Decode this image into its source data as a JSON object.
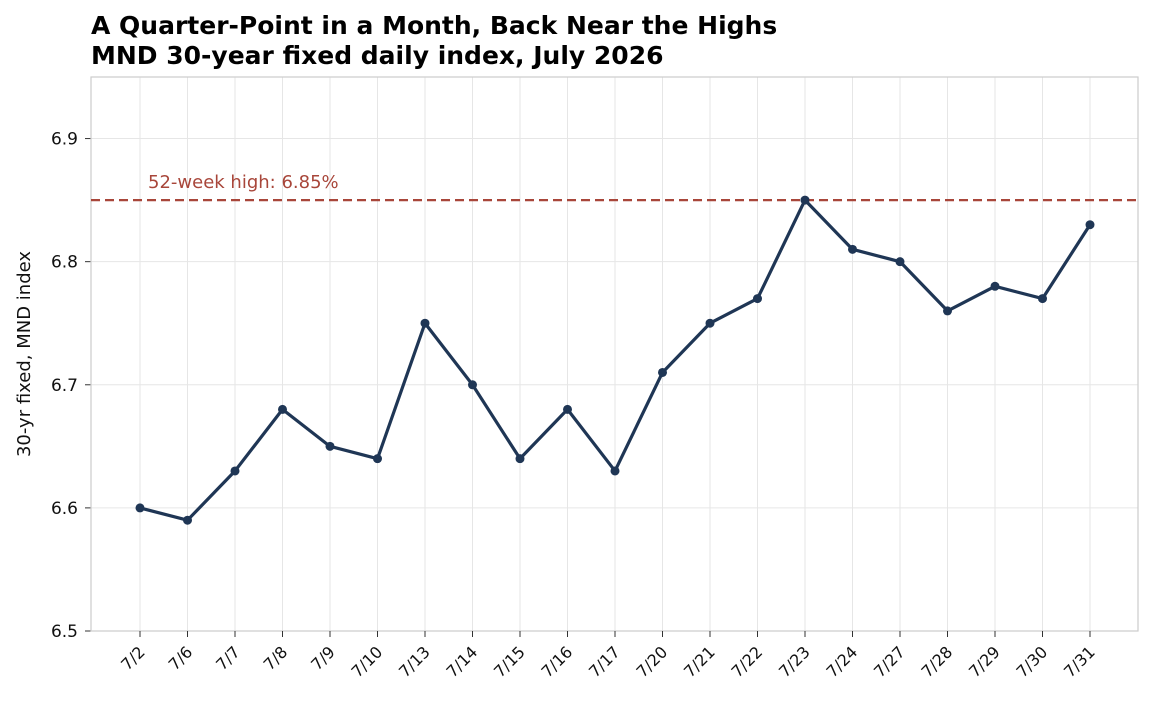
{
  "chart_data": {
    "type": "line",
    "title": "A Quarter-Point in a Month, Back Near the Highs",
    "subtitle": "MND 30-year fixed daily index, July 2026",
    "xlabel": "",
    "ylabel": "30-yr fixed, MND index",
    "ylim": [
      6.5,
      6.95
    ],
    "yticks": [
      "6.5",
      "6.6",
      "6.7",
      "6.8",
      "6.9"
    ],
    "categories": [
      "7/2",
      "7/6",
      "7/7",
      "7/8",
      "7/9",
      "7/10",
      "7/13",
      "7/14",
      "7/15",
      "7/16",
      "7/17",
      "7/20",
      "7/21",
      "7/22",
      "7/23",
      "7/24",
      "7/27",
      "7/28",
      "7/29",
      "7/30",
      "7/31"
    ],
    "series": [
      {
        "values": [
          6.6,
          6.59,
          6.63,
          6.68,
          6.65,
          6.64,
          6.75,
          6.7,
          6.64,
          6.68,
          6.63,
          6.71,
          6.75,
          6.77,
          6.85,
          6.81,
          6.8,
          6.76,
          6.78,
          6.77,
          6.83
        ],
        "color": "#1f3655"
      }
    ],
    "reference_line": {
      "value": 6.85,
      "label": "52-week high: 6.85%",
      "color": "#a8463a",
      "style": "dashed"
    },
    "grid": true,
    "legend": "none"
  }
}
